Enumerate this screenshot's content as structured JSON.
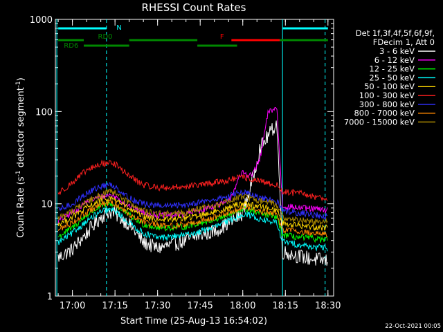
{
  "chart_data": {
    "type": "line",
    "title": "RHESSI Count Rates",
    "xlabel": "Start Time (25-Aug-13 16:54:02)",
    "ylabel": "Count Rate (s⁻¹ detector segment⁻¹)",
    "y_scale": "log",
    "ylim": [
      1,
      1000
    ],
    "xlim": [
      "16:54",
      "18:32"
    ],
    "x_ticks": [
      "17:00",
      "17:15",
      "17:30",
      "17:45",
      "18:00",
      "18:15",
      "18:30"
    ],
    "y_ticks": [
      "1",
      "10",
      "100",
      "1000"
    ],
    "legend_header": [
      "Det 1f,3f,4f,5f,6f,9f,",
      "FDecim 1, Att 0"
    ],
    "legend_position": "right",
    "grid": false,
    "x": [
      "16:55",
      "17:00",
      "17:05",
      "17:10",
      "17:13",
      "17:15",
      "17:20",
      "17:25",
      "17:30",
      "17:35",
      "17:40",
      "17:45",
      "17:50",
      "17:55",
      "17:58",
      "18:00",
      "18:03",
      "18:06",
      "18:09",
      "18:12",
      "18:14",
      "18:20",
      "18:25",
      "18:30"
    ],
    "series": [
      {
        "name": "3 - 6 keV",
        "color": "#ffffff",
        "values": [
          2.6,
          3.2,
          4.8,
          7.2,
          8.2,
          7.8,
          6.0,
          3.8,
          3.3,
          3.6,
          4.0,
          4.6,
          5.0,
          6.2,
          7.0,
          8.0,
          16,
          40,
          55,
          75,
          3.0,
          2.7,
          2.5,
          2.4
        ]
      },
      {
        "name": "6 - 12 keV",
        "color": "#ff00ff",
        "values": [
          6.5,
          8.0,
          10.5,
          12.0,
          12.5,
          12.0,
          9.5,
          8.0,
          7.5,
          7.5,
          7.8,
          8.5,
          9.5,
          10.5,
          17,
          22,
          20,
          30,
          100,
          110,
          9.5,
          9.0,
          8.8,
          8.5
        ]
      },
      {
        "name": "12 - 25 keV",
        "color": "#00ff00",
        "values": [
          4.4,
          5.5,
          7.5,
          9.5,
          10.0,
          9.8,
          7.5,
          6.0,
          5.5,
          5.5,
          5.7,
          6.2,
          6.8,
          7.5,
          8.2,
          8.8,
          8.5,
          7.8,
          7.5,
          7.2,
          4.6,
          4.3,
          4.2,
          4.0
        ]
      },
      {
        "name": "25 - 50 keV",
        "color": "#00ffff",
        "values": [
          3.8,
          4.8,
          6.5,
          8.2,
          8.6,
          8.4,
          6.2,
          4.8,
          4.3,
          4.4,
          4.6,
          5.0,
          5.6,
          6.5,
          7.2,
          7.8,
          7.5,
          6.8,
          6.5,
          6.2,
          3.9,
          3.6,
          3.4,
          3.3
        ]
      },
      {
        "name": "50 - 100 keV",
        "color": "#ffd700",
        "values": [
          6.0,
          7.2,
          9.0,
          11.0,
          11.5,
          11.2,
          8.8,
          7.2,
          6.8,
          6.8,
          7.0,
          7.5,
          8.2,
          9.0,
          9.8,
          10.2,
          9.8,
          9.3,
          9.0,
          8.6,
          6.2,
          5.8,
          5.6,
          5.5
        ]
      },
      {
        "name": "100 - 300 keV",
        "color": "#ff2020",
        "values": [
          13,
          17,
          23,
          27,
          28,
          27,
          20,
          16,
          15,
          15,
          15.5,
          16,
          17,
          18,
          19,
          19.5,
          18.5,
          17.5,
          16.5,
          16,
          13.5,
          13,
          12,
          11.5
        ]
      },
      {
        "name": "300 - 800 keV",
        "color": "#3030ff",
        "values": [
          8.5,
          10,
          13,
          15.5,
          16,
          15.5,
          11.5,
          10,
          9.5,
          9.5,
          9.8,
          10.5,
          11,
          12,
          13,
          13.5,
          12.5,
          11.5,
          11,
          10.5,
          8.5,
          8,
          7.6,
          7.3
        ]
      },
      {
        "name": "800 - 7000 keV",
        "color": "#ff8800",
        "values": [
          5.2,
          6.3,
          8.0,
          9.8,
          10.3,
          10.0,
          7.8,
          6.3,
          5.8,
          5.8,
          6.0,
          6.5,
          7.2,
          8.0,
          8.8,
          9.2,
          8.8,
          8.3,
          8.0,
          7.6,
          5.3,
          5.0,
          4.8,
          4.7
        ]
      },
      {
        "name": "7000 - 15000 keV",
        "color": "#aa8800",
        "values": [
          7.0,
          8.4,
          10.5,
          12.8,
          13.4,
          13.0,
          10.2,
          8.4,
          7.8,
          7.8,
          8.1,
          8.8,
          9.6,
          10.6,
          11.5,
          12.0,
          11.4,
          10.8,
          10.3,
          9.8,
          7.1,
          6.7,
          6.4,
          6.3
        ]
      }
    ],
    "vertical_lines": [
      {
        "time": "16:54:30",
        "style": "solid",
        "color": "#00ffff"
      },
      {
        "time": "17:12:00",
        "style": "dashed",
        "color": "#00ffff"
      },
      {
        "time": "18:14:00",
        "style": "solid",
        "color": "#00ffff"
      },
      {
        "time": "18:29:00",
        "style": "dashed",
        "color": "#00ffff"
      }
    ],
    "status_bars": [
      {
        "label": "N",
        "label_at": "17:15:30",
        "label_row": 1,
        "color": "#00ffff",
        "row": 1,
        "segments": [
          [
            "16:55",
            "17:12"
          ],
          [
            "18:14",
            "18:30"
          ]
        ]
      },
      {
        "label": "RD0",
        "label_at": "17:09",
        "label_row": 2,
        "color": "#008800",
        "row": 2,
        "segments": [
          [
            "16:55",
            "17:04"
          ],
          [
            "17:20",
            "17:44"
          ],
          [
            "17:58",
            "18:30"
          ]
        ]
      },
      {
        "label": "RD6",
        "label_at": "16:57",
        "label_row": 3,
        "color": "#008800",
        "row": 3,
        "segments": [
          [
            "17:04",
            "17:20"
          ],
          [
            "17:44",
            "17:58"
          ]
        ]
      },
      {
        "label": "F",
        "label_at": "17:52",
        "label_row": 2,
        "color": "#ff0000",
        "row": 2,
        "segments": [
          [
            "17:56",
            "18:13"
          ]
        ]
      }
    ]
  },
  "footer_date": "22-Oct-2021 00:05"
}
